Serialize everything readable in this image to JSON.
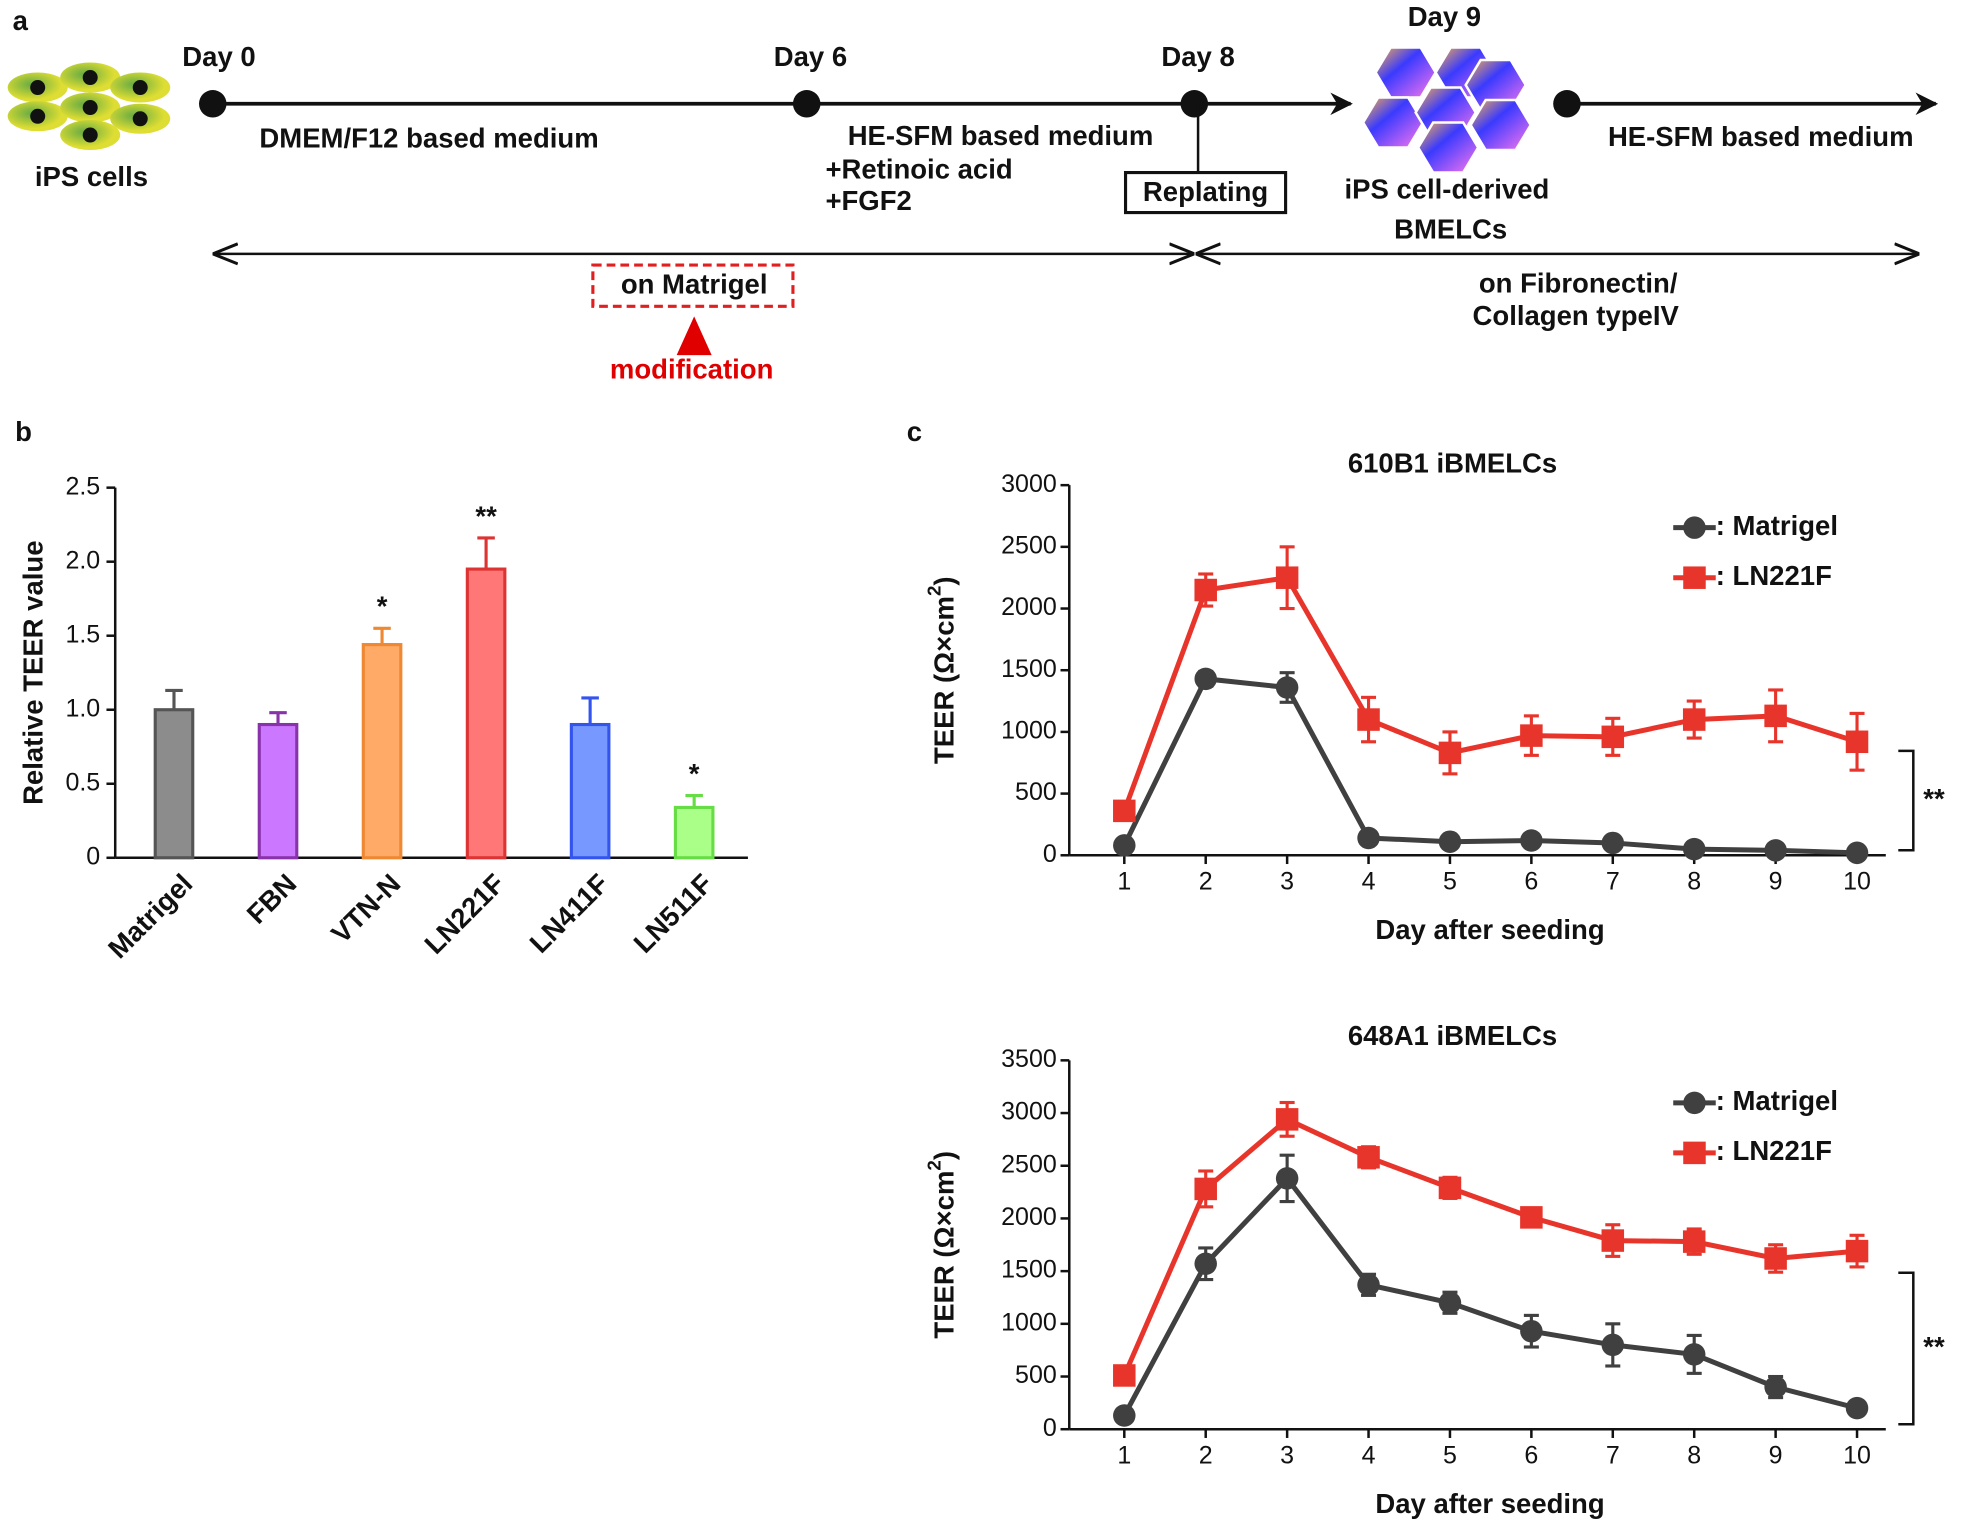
{
  "panel_a": {
    "label": "a",
    "day0": "Day 0",
    "day6": "Day 6",
    "day8": "Day 8",
    "day9": "Day 9",
    "ips_cells": "iPS cells",
    "medium1": "DMEM/F12 based medium",
    "medium2": "HE-SFM based medium",
    "additive1": "+Retinoic acid",
    "additive2": "+FGF2",
    "replating": "Replating",
    "derived1": "iPS cell-derived",
    "derived2": "BMELCs",
    "medium3": "HE-SFM based medium",
    "coating1": "on Matrigel",
    "modification": "modification",
    "coating2a": "on Fibronectin/",
    "coating2b": "Collagen typeIV"
  },
  "chart_data": [
    {
      "type": "bar",
      "panel_label": "b",
      "ylabel": "Relative TEER value",
      "categories": [
        "Matrigel",
        "FBN",
        "VTN-N",
        "LN221F",
        "LN411F",
        "LN511F"
      ],
      "values": [
        1.0,
        0.9,
        1.44,
        1.95,
        0.9,
        0.34
      ],
      "errors": [
        0.13,
        0.08,
        0.11,
        0.21,
        0.18,
        0.08
      ],
      "significance": [
        null,
        null,
        "*",
        "**",
        null,
        "*"
      ],
      "colors": [
        "#8c8c8c",
        "#cc77ff",
        "#ffaa66",
        "#ff7777",
        "#7799ff",
        "#aaff88"
      ],
      "edge_colors": [
        "#555555",
        "#8833aa",
        "#ee8833",
        "#dd3333",
        "#3355ee",
        "#66dd44"
      ],
      "ylim": [
        0,
        2.5
      ],
      "yticks": [
        0,
        0.5,
        {
          "value": 1,
          "label": "1.0"
        },
        1.5,
        {
          "value": 2,
          "label": "2.0"
        },
        2.5
      ]
    },
    {
      "type": "line",
      "panel_label": "c",
      "title": "610B1 iBMELCs",
      "ylabel": [
        "TEER (Ω×cm",
        "2",
        ")"
      ],
      "xlabel": "Day after seeding",
      "x": [
        1,
        2,
        3,
        4,
        5,
        6,
        7,
        8,
        9,
        10
      ],
      "ylim": [
        0,
        3000
      ],
      "yticks": [
        0,
        500,
        1000,
        1500,
        2000,
        2500,
        3000
      ],
      "legend": "upper right",
      "significance": "**",
      "series": [
        {
          "name": ": Matrigel",
          "color": "#404040",
          "marker": "circle",
          "values": [
            80,
            1430,
            1360,
            140,
            110,
            120,
            100,
            50,
            40,
            20
          ],
          "errors": [
            20,
            60,
            120,
            30,
            30,
            30,
            30,
            20,
            20,
            10
          ]
        },
        {
          "name": ": LN221F",
          "color": "#e8352b",
          "marker": "square",
          "values": [
            360,
            2150,
            2250,
            1100,
            830,
            970,
            960,
            1100,
            1130,
            920
          ],
          "errors": [
            30,
            130,
            250,
            180,
            170,
            160,
            150,
            150,
            210,
            230
          ]
        }
      ]
    },
    {
      "type": "line",
      "title": "648A1 iBMELCs",
      "ylabel": [
        "TEER (Ω×cm",
        "2",
        ")"
      ],
      "xlabel": "Day after seeding",
      "x": [
        1,
        2,
        3,
        4,
        5,
        6,
        7,
        8,
        9,
        10
      ],
      "ylim": [
        0,
        3500
      ],
      "yticks": [
        0,
        500,
        1000,
        1500,
        2000,
        2500,
        3000,
        3500
      ],
      "legend": "upper right",
      "significance": "**",
      "series": [
        {
          "name": ": Matrigel",
          "color": "#404040",
          "marker": "circle",
          "values": [
            130,
            1570,
            2380,
            1370,
            1200,
            930,
            800,
            710,
            400,
            200
          ],
          "errors": [
            30,
            150,
            220,
            100,
            100,
            150,
            200,
            180,
            100,
            50
          ]
        },
        {
          "name": ": LN221F",
          "color": "#e8352b",
          "marker": "square",
          "values": [
            510,
            2280,
            2940,
            2580,
            2290,
            2010,
            1790,
            1780,
            1620,
            1690
          ],
          "errors": [
            30,
            170,
            160,
            100,
            100,
            80,
            150,
            120,
            130,
            150
          ]
        }
      ]
    }
  ]
}
